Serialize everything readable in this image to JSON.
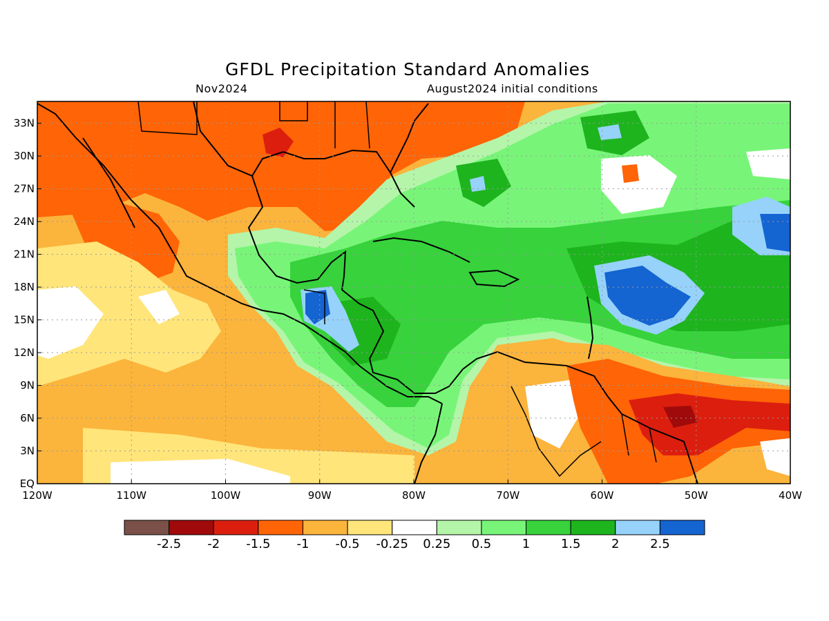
{
  "header": {
    "title": "GFDL Precipitation Standard Anomalies",
    "forecast_month": "Nov2024",
    "initial_conditions": "August2024 initial conditions"
  },
  "map": {
    "region": "Caribbean / Gulf of Mexico / Central America",
    "lon_range": [
      -120,
      -40
    ],
    "lat_range": [
      0,
      35
    ],
    "lat_ticks": [
      "33N",
      "30N",
      "27N",
      "24N",
      "21N",
      "18N",
      "15N",
      "12N",
      "9N",
      "6N",
      "3N",
      "EQ"
    ],
    "lon_ticks": [
      "120W",
      "110W",
      "100W",
      "90W",
      "80W",
      "70W",
      "60W",
      "50W",
      "40W"
    ],
    "grid": "dotted"
  },
  "colorbar": {
    "labels": [
      "-2.5",
      "-2",
      "-1.5",
      "-1",
      "-0.5",
      "-0.25",
      "0.25",
      "0.5",
      "1",
      "1.5",
      "2",
      "2.5"
    ],
    "colors": [
      "#7a5048",
      "#a00a0a",
      "#dc1e0e",
      "#ff6407",
      "#fbb43c",
      "#ffe57a",
      "#ffffff",
      "#b4f5aa",
      "#78f578",
      "#37d23c",
      "#1eb41e",
      "#96d2fa",
      "#1464d2"
    ]
  }
}
